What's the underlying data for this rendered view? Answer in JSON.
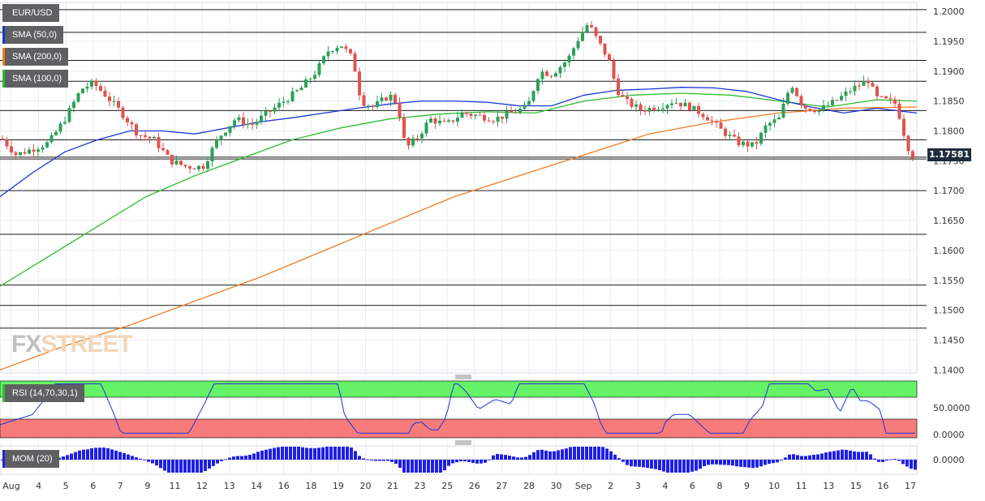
{
  "chart_data": {
    "type": "candlestick",
    "symbol": "EUR/USD",
    "indicators": {
      "sma50": {
        "label": "SMA (50,0)",
        "color": "#1a36d6"
      },
      "sma200": {
        "label": "SMA (200,0)",
        "color": "#f07d22"
      },
      "sma100": {
        "label": "SMA (100,0)",
        "color": "#2dbd2d"
      },
      "rsi": {
        "label": "RSI (14,70,30,1)",
        "color": "#1a36d6",
        "ylim": [
          0,
          100
        ],
        "overbought_color": "#66f266",
        "oversold_color": "#f77b7b"
      },
      "mom": {
        "label": "MOM (20)",
        "color": "#1f1fe8"
      }
    },
    "last_price": "1.17581",
    "price_axis": {
      "ylim": [
        1.1395,
        1.2015
      ],
      "tick_labels": [
        "1.2000",
        "1.1950",
        "1.1900",
        "1.1850",
        "1.1800",
        "1.1750",
        "1.1700",
        "1.1650",
        "1.1600",
        "1.1550",
        "1.1500",
        "1.1450",
        "1.1400"
      ]
    },
    "rsi_axis": {
      "tick_labels": [
        "50.0000",
        "0.0000"
      ]
    },
    "mom_axis": {
      "tick_labels": [
        "0.0000"
      ]
    },
    "date_labels": [
      "Aug",
      "4",
      "5",
      "6",
      "7",
      "9",
      "11",
      "12",
      "13",
      "14",
      "16",
      "18",
      "19",
      "20",
      "21",
      "23",
      "25",
      "26",
      "27",
      "28",
      "30",
      "Sep",
      "2",
      "3",
      "4",
      "6",
      "8",
      "9",
      "10",
      "11",
      "13",
      "15",
      "16",
      "17"
    ],
    "horizontal_levels": [
      1.2003,
      1.1965,
      1.1918,
      1.1883,
      1.1834,
      1.1785,
      1.1756,
      1.1753,
      1.17,
      1.1627,
      1.1542,
      1.1508,
      1.147
    ],
    "candles": [],
    "colors": {
      "up": "#2ea05a",
      "down": "#e0534f",
      "grid": "#e9edf1",
      "levels": "#1a1a1a"
    }
  },
  "watermark": {
    "fx": "FX",
    "street": "STREET"
  }
}
